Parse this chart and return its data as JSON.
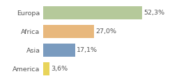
{
  "categories": [
    "Europa",
    "Africa",
    "Asia",
    "America"
  ],
  "values": [
    52.3,
    27.0,
    17.1,
    3.6
  ],
  "labels": [
    "52,3%",
    "27,0%",
    "17,1%",
    "3,6%"
  ],
  "colors": [
    "#b5c99a",
    "#e8b87d",
    "#7a9bbf",
    "#e8d45a"
  ],
  "background_color": "#ffffff",
  "xlim": [
    0,
    68
  ],
  "bar_height": 0.72,
  "label_fontsize": 6.8,
  "tick_fontsize": 6.8,
  "label_color": "#555555",
  "tick_color": "#555555"
}
